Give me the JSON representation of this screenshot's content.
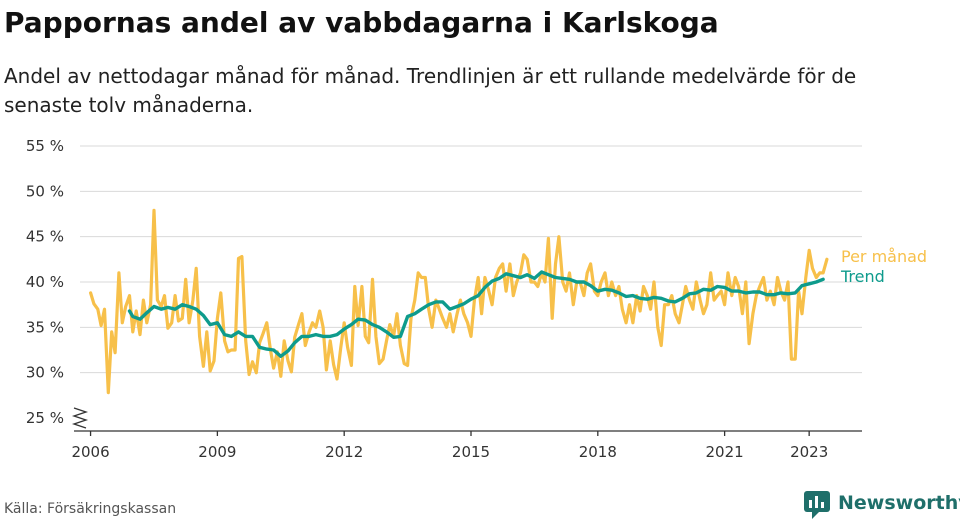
{
  "title": "Pappornas andel av vabbdagarna i Karlskoga",
  "subtitle_line1": "Andel av nettodagar månad för månad. Trendlinjen är ett rullande medelvärde för de",
  "subtitle_line2": "senaste tolv månaderna.",
  "source": "Källa: Försäkringskassan",
  "brand": "Newsworthy",
  "colors": {
    "monthly": "#f7c04a",
    "trend": "#0e9b8c",
    "grid": "#d9d9d9",
    "axis": "#333333"
  },
  "chart_data": {
    "type": "line",
    "title": "Pappornas andel av vabbdagarna i Karlskoga",
    "xlabel": "",
    "ylabel": "",
    "ylim": [
      25,
      55
    ],
    "xlim": [
      2005.75,
      2024.25
    ],
    "yticks": [
      25,
      30,
      35,
      40,
      45,
      50,
      55
    ],
    "ytick_labels": [
      "25 %",
      "30 %",
      "35 %",
      "40 %",
      "45 %",
      "50 %",
      "55 %"
    ],
    "xticks": [
      2006,
      2009,
      2012,
      2015,
      2018,
      2021,
      2023
    ],
    "xtick_labels": [
      "2006",
      "2009",
      "2012",
      "2015",
      "2018",
      "2021",
      "2023"
    ],
    "grid": true,
    "legend": "inline-right",
    "series": [
      {
        "name": "Per månad",
        "x": [
          2006.0,
          2006.08,
          2006.17,
          2006.25,
          2006.33,
          2006.42,
          2006.5,
          2006.58,
          2006.67,
          2006.75,
          2006.83,
          2006.92,
          2007.0,
          2007.08,
          2007.17,
          2007.25,
          2007.33,
          2007.42,
          2007.5,
          2007.58,
          2007.67,
          2007.75,
          2007.83,
          2007.92,
          2008.0,
          2008.08,
          2008.17,
          2008.25,
          2008.33,
          2008.42,
          2008.5,
          2008.58,
          2008.67,
          2008.75,
          2008.83,
          2008.92,
          2009.0,
          2009.08,
          2009.17,
          2009.25,
          2009.33,
          2009.42,
          2009.5,
          2009.58,
          2009.67,
          2009.75,
          2009.83,
          2009.92,
          2010.0,
          2010.08,
          2010.17,
          2010.25,
          2010.33,
          2010.42,
          2010.5,
          2010.58,
          2010.67,
          2010.75,
          2010.83,
          2010.92,
          2011.0,
          2011.08,
          2011.17,
          2011.25,
          2011.33,
          2011.42,
          2011.5,
          2011.58,
          2011.67,
          2011.75,
          2011.83,
          2011.92,
          2012.0,
          2012.08,
          2012.17,
          2012.25,
          2012.33,
          2012.42,
          2012.5,
          2012.58,
          2012.67,
          2012.75,
          2012.83,
          2012.92,
          2013.0,
          2013.08,
          2013.17,
          2013.25,
          2013.33,
          2013.42,
          2013.5,
          2013.58,
          2013.67,
          2013.75,
          2013.83,
          2013.92,
          2014.0,
          2014.08,
          2014.17,
          2014.25,
          2014.33,
          2014.42,
          2014.5,
          2014.58,
          2014.67,
          2014.75,
          2014.83,
          2014.92,
          2015.0,
          2015.08,
          2015.17,
          2015.25,
          2015.33,
          2015.42,
          2015.5,
          2015.58,
          2015.67,
          2015.75,
          2015.83,
          2015.92,
          2016.0,
          2016.08,
          2016.17,
          2016.25,
          2016.33,
          2016.42,
          2016.5,
          2016.58,
          2016.67,
          2016.75,
          2016.83,
          2016.92,
          2017.0,
          2017.08,
          2017.17,
          2017.25,
          2017.33,
          2017.42,
          2017.5,
          2017.58,
          2017.67,
          2017.75,
          2017.83,
          2017.92,
          2018.0,
          2018.08,
          2018.17,
          2018.25,
          2018.33,
          2018.42,
          2018.5,
          2018.58,
          2018.67,
          2018.75,
          2018.83,
          2018.92,
          2019.0,
          2019.08,
          2019.17,
          2019.25,
          2019.33,
          2019.42,
          2019.5,
          2019.58,
          2019.67,
          2019.75,
          2019.83,
          2019.92,
          2020.0,
          2020.08,
          2020.17,
          2020.25,
          2020.33,
          2020.42,
          2020.5,
          2020.58,
          2020.67,
          2020.75,
          2020.83,
          2020.92,
          2021.0,
          2021.08,
          2021.17,
          2021.25,
          2021.33,
          2021.42,
          2021.5,
          2021.58,
          2021.67,
          2021.75,
          2021.83,
          2021.92,
          2022.0,
          2022.08,
          2022.17,
          2022.25,
          2022.33,
          2022.42,
          2022.5,
          2022.58,
          2022.67,
          2022.75,
          2022.83,
          2022.92,
          2023.0,
          2023.08,
          2023.17,
          2023.25,
          2023.33,
          2023.42
        ],
        "values": [
          38.8,
          37.6,
          37.0,
          35.2,
          37.0,
          27.8,
          34.5,
          32.2,
          41.0,
          35.5,
          37.3,
          38.5,
          34.5,
          36.8,
          34.2,
          38.0,
          35.5,
          37.5,
          47.9,
          38.0,
          37.3,
          38.5,
          34.9,
          35.5,
          38.5,
          35.7,
          36.0,
          40.3,
          35.5,
          38.0,
          41.5,
          34.0,
          30.7,
          34.5,
          30.2,
          31.3,
          36.0,
          38.8,
          33.5,
          32.3,
          32.5,
          32.5,
          42.6,
          42.8,
          33.5,
          29.8,
          31.2,
          30.0,
          33.3,
          34.3,
          35.5,
          32.7,
          30.5,
          32.3,
          29.6,
          33.5,
          31.3,
          30.1,
          33.9,
          35.3,
          36.5,
          33.0,
          34.5,
          35.5,
          35.0,
          36.8,
          35.0,
          30.3,
          33.5,
          30.9,
          29.3,
          32.8,
          35.5,
          32.8,
          30.8,
          39.5,
          35.2,
          39.5,
          34.0,
          33.3,
          40.3,
          34.0,
          31.0,
          31.5,
          33.5,
          35.3,
          34.0,
          36.5,
          33.0,
          31.0,
          30.8,
          36.0,
          38.0,
          41.0,
          40.5,
          40.5,
          37.0,
          35.0,
          38.0,
          37.0,
          36.0,
          35.0,
          36.5,
          34.5,
          36.5,
          38.0,
          36.5,
          35.5,
          34.0,
          38.0,
          40.5,
          36.5,
          40.5,
          39.0,
          37.5,
          40.5,
          41.5,
          42.0,
          39.0,
          42.0,
          38.5,
          40.0,
          41.0,
          43.0,
          42.5,
          40.0,
          40.0,
          39.5,
          41.0,
          40.0,
          44.8,
          36.0,
          42.0,
          45.0,
          40.0,
          39.0,
          41.0,
          37.5,
          40.0,
          40.0,
          38.5,
          41.0,
          42.0,
          39.0,
          38.5,
          40.0,
          41.0,
          38.5,
          40.0,
          38.5,
          39.5,
          37.0,
          35.5,
          37.5,
          35.5,
          38.5,
          36.8,
          39.5,
          38.5,
          37.0,
          40.0,
          35.0,
          33.0,
          37.5,
          37.5,
          38.5,
          36.5,
          35.5,
          37.5,
          39.5,
          38.0,
          37.0,
          40.0,
          38.0,
          36.5,
          37.5,
          41.0,
          38.0,
          38.5,
          39.0,
          37.5,
          41.0,
          38.5,
          40.5,
          39.5,
          36.5,
          40.0,
          33.2,
          36.5,
          38.5,
          39.5,
          40.5,
          38.0,
          39.0,
          37.5,
          40.5,
          39.0,
          38.0,
          40.0,
          31.5,
          31.5,
          39.0,
          36.5,
          40.5,
          43.5,
          41.5,
          40.5,
          41.0,
          41.0,
          42.5
        ]
      },
      {
        "name": "Trend",
        "x": [
          2006.92,
          2007.0,
          2007.17,
          2007.33,
          2007.5,
          2007.67,
          2007.83,
          2008.0,
          2008.17,
          2008.33,
          2008.5,
          2008.67,
          2008.83,
          2009.0,
          2009.17,
          2009.33,
          2009.5,
          2009.67,
          2009.83,
          2010.0,
          2010.17,
          2010.33,
          2010.5,
          2010.67,
          2010.83,
          2011.0,
          2011.17,
          2011.33,
          2011.5,
          2011.67,
          2011.83,
          2012.0,
          2012.17,
          2012.33,
          2012.5,
          2012.67,
          2012.83,
          2013.0,
          2013.17,
          2013.33,
          2013.5,
          2013.67,
          2013.83,
          2014.0,
          2014.17,
          2014.33,
          2014.5,
          2014.67,
          2014.83,
          2015.0,
          2015.17,
          2015.33,
          2015.5,
          2015.67,
          2015.83,
          2016.0,
          2016.17,
          2016.33,
          2016.5,
          2016.67,
          2016.83,
          2017.0,
          2017.17,
          2017.33,
          2017.5,
          2017.67,
          2017.83,
          2018.0,
          2018.17,
          2018.33,
          2018.5,
          2018.67,
          2018.83,
          2019.0,
          2019.17,
          2019.33,
          2019.5,
          2019.67,
          2019.83,
          2020.0,
          2020.17,
          2020.33,
          2020.5,
          2020.67,
          2020.83,
          2021.0,
          2021.17,
          2021.33,
          2021.5,
          2021.67,
          2021.83,
          2022.0,
          2022.17,
          2022.33,
          2022.5,
          2022.67,
          2022.83,
          2023.0,
          2023.17,
          2023.33
        ],
        "values": [
          36.8,
          36.2,
          35.9,
          36.6,
          37.3,
          37.0,
          37.2,
          37.0,
          37.5,
          37.3,
          37.0,
          36.3,
          35.3,
          35.5,
          34.2,
          34.0,
          34.5,
          34.0,
          34.0,
          32.8,
          32.6,
          32.5,
          31.8,
          32.4,
          33.3,
          34.0,
          34.0,
          34.2,
          34.0,
          34.0,
          34.2,
          34.8,
          35.3,
          35.9,
          35.8,
          35.3,
          35.0,
          34.5,
          33.9,
          34.0,
          36.2,
          36.5,
          37.0,
          37.5,
          37.8,
          37.8,
          37.0,
          37.3,
          37.6,
          38.1,
          38.5,
          39.4,
          40.1,
          40.4,
          40.9,
          40.7,
          40.5,
          40.8,
          40.4,
          41.1,
          40.8,
          40.5,
          40.4,
          40.3,
          40.0,
          40.0,
          39.6,
          39.0,
          39.2,
          39.1,
          38.8,
          38.4,
          38.5,
          38.2,
          38.1,
          38.3,
          38.2,
          37.9,
          37.8,
          38.2,
          38.7,
          38.8,
          39.2,
          39.1,
          39.5,
          39.4,
          39.0,
          39.0,
          38.8,
          38.9,
          38.9,
          38.6,
          38.6,
          38.8,
          38.7,
          38.8,
          39.6,
          39.8,
          40.0,
          40.3
        ]
      }
    ]
  }
}
